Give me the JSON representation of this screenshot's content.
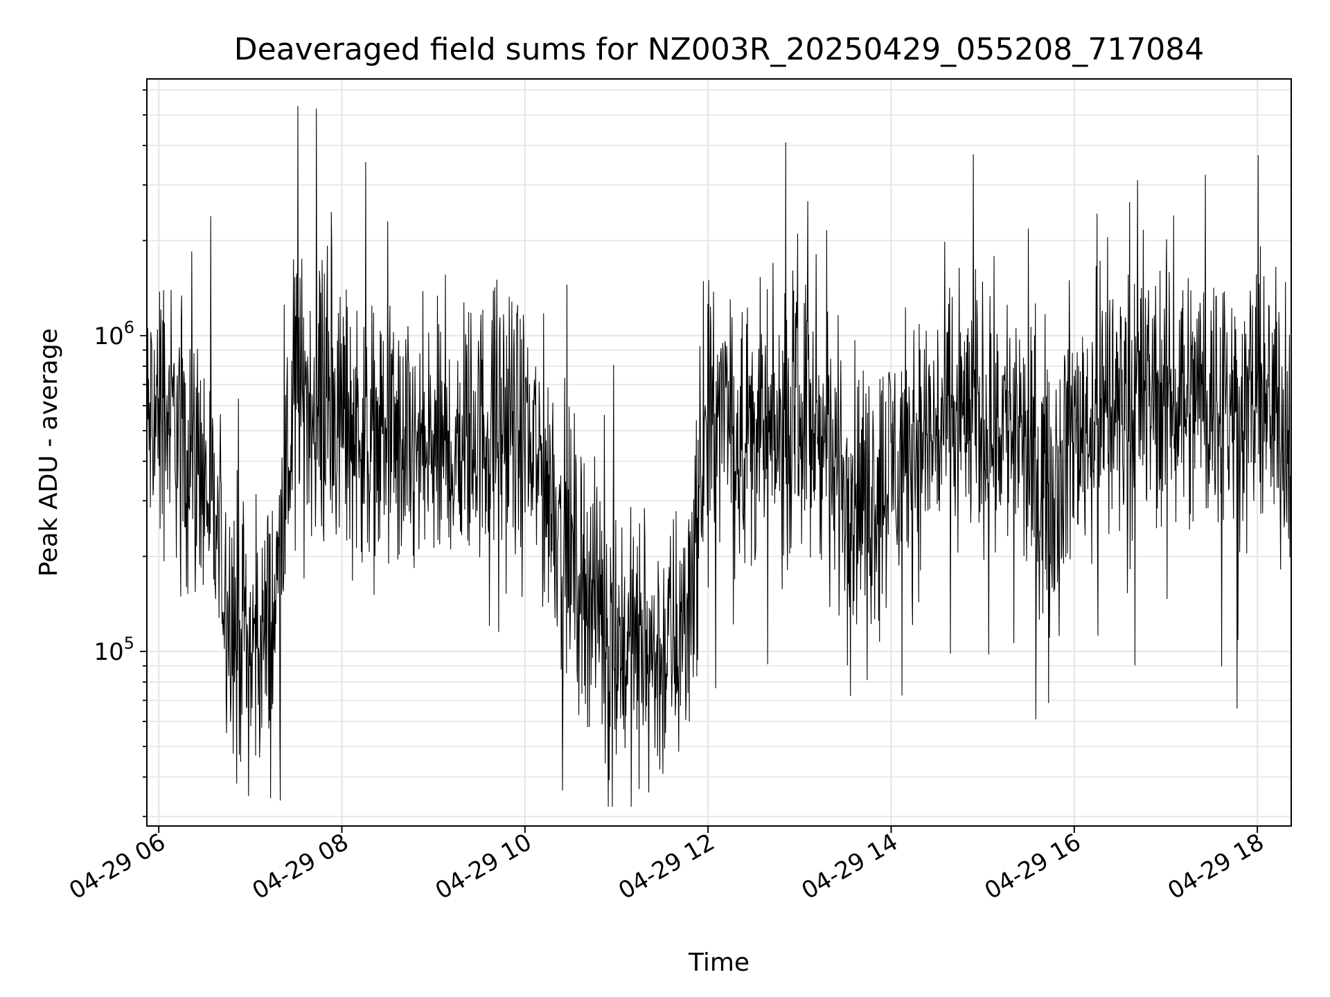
{
  "chart_data": {
    "type": "line",
    "title": "Deaveraged field sums for NZ003R_20250429_055208_717084",
    "xlabel": "Time",
    "ylabel": "Peak ADU - average",
    "x_range": [
      "04-29 05:52",
      "04-29 18:22"
    ],
    "ylim": [
      28000,
      6500000
    ],
    "yscale": "log",
    "grid": true,
    "legend": "none",
    "line_color": "#000000",
    "x_ticks": [
      {
        "label": "04-29 06",
        "hour": 6
      },
      {
        "label": "04-29 08",
        "hour": 8
      },
      {
        "label": "04-29 10",
        "hour": 10
      },
      {
        "label": "04-29 12",
        "hour": 12
      },
      {
        "label": "04-29 14",
        "hour": 14
      },
      {
        "label": "04-29 16",
        "hour": 16
      },
      {
        "label": "04-29 18",
        "hour": 18
      }
    ],
    "y_ticks": [
      {
        "base": "10",
        "exp": "5",
        "value": 100000
      },
      {
        "base": "10",
        "exp": "6",
        "value": 1000000
      }
    ],
    "series": [
      {
        "hours": [
          5.87,
          6.0,
          6.25,
          6.5,
          6.75,
          7.0,
          7.25,
          7.5,
          7.75,
          8.0,
          8.25,
          8.5,
          8.75,
          9.0,
          9.25,
          9.5,
          9.75,
          10.0,
          10.25,
          10.5,
          10.75,
          11.0,
          11.25,
          11.5,
          11.75,
          12.0,
          12.25,
          12.5,
          12.75,
          13.0,
          13.25,
          13.5,
          13.75,
          14.0,
          14.25,
          14.5,
          14.75,
          15.0,
          15.25,
          15.5,
          15.75,
          16.0,
          16.25,
          16.5,
          16.75,
          17.0,
          17.25,
          17.5,
          17.75,
          18.0,
          18.25,
          18.37
        ],
        "values": [
          500000,
          600000,
          500000,
          350000,
          150000,
          100000,
          120000,
          700000,
          600000,
          550000,
          500000,
          450000,
          400000,
          420000,
          450000,
          500000,
          550000,
          450000,
          350000,
          200000,
          150000,
          110000,
          100000,
          95000,
          120000,
          500000,
          550000,
          500000,
          450000,
          600000,
          450000,
          350000,
          300000,
          400000,
          450000,
          500000,
          550000,
          550000,
          550000,
          400000,
          350000,
          500000,
          550000,
          600000,
          650000,
          650000,
          700000,
          650000,
          600000,
          600000,
          550000,
          500000
        ]
      }
    ]
  }
}
